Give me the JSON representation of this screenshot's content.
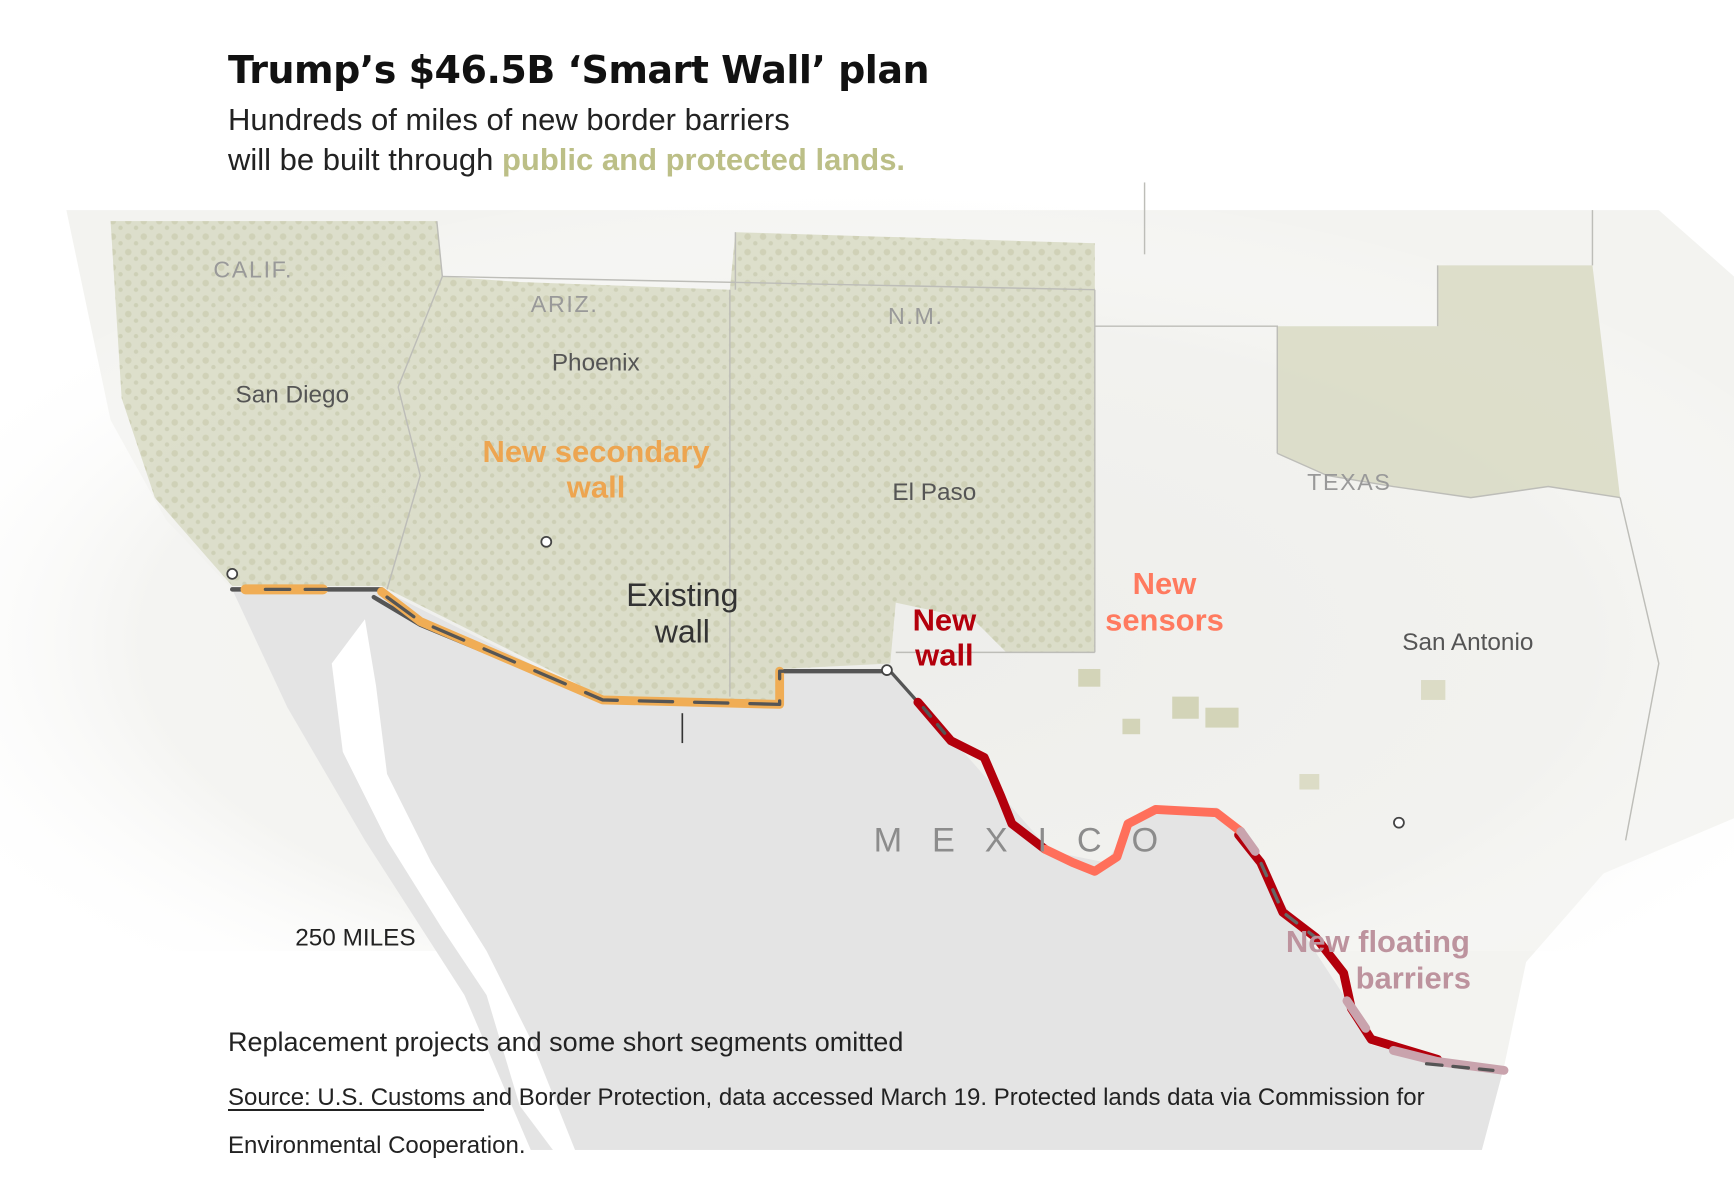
{
  "header": {
    "title": "Trump’s $46.5B ‘Smart Wall’ plan",
    "subtitle_line1": "Hundreds of miles of new border barriers",
    "subtitle_line2_prefix": "will be built through ",
    "subtitle_highlight": "public and protected lands."
  },
  "map": {
    "state_labels": [
      "CALIF.",
      "ARIZ.",
      "N.M.",
      "TEXAS"
    ],
    "country_label": "MEXICO",
    "cities": [
      "San Diego",
      "Phoenix",
      "El Paso",
      "San Antonio"
    ],
    "annotations": {
      "secondary_wall": [
        "New secondary",
        "wall"
      ],
      "existing_wall": [
        "Existing",
        "wall"
      ],
      "new_wall": [
        "New",
        "wall"
      ],
      "new_sensors": [
        "New",
        "sensors"
      ],
      "floating_barriers": [
        "New floating",
        "barriers"
      ]
    },
    "scale_label": "250 MILES",
    "colors": {
      "existing_wall": "#555555",
      "secondary_wall": "#f0ad55",
      "new_wall": "#b3000c",
      "new_sensors": "#ff6f5b",
      "floating_barriers": "#c9a3ad",
      "protected_lands": "#bcbf87",
      "mexico": "#e6e6e6",
      "usa": "#f4f4f2"
    }
  },
  "footer": {
    "note": "Replacement projects and some short segments omitted",
    "source": "Source: U.S. Customs and Border Protection, data accessed March 19. Protected lands data via Commission for Environmental Cooperation."
  }
}
